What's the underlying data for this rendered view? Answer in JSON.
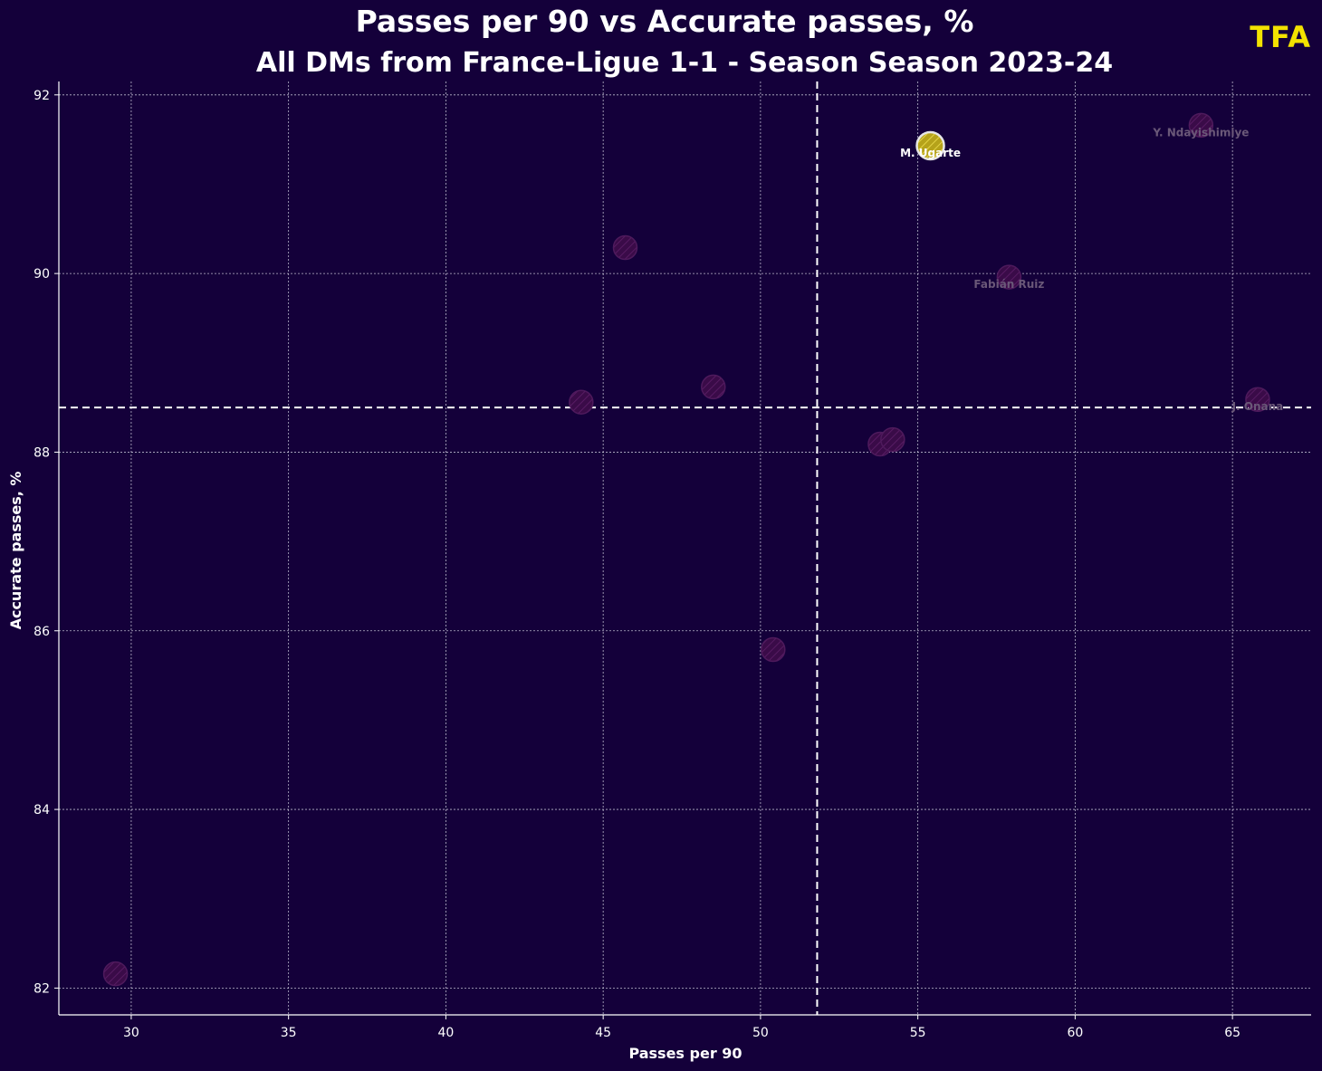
{
  "header": {
    "title": "Passes per 90 vs Accurate passes, %",
    "subtitle": "All DMs from France-Ligue 1-1 - Season Season 2023-24",
    "logo_text": "TFA"
  },
  "colors": {
    "background": "#14003a",
    "grid": "#d9d9e6",
    "highlight_fill": "#b5a21a",
    "highlight_stroke": "#e6e6e6",
    "point_fill": "#3a0b48",
    "point_stroke": "#4e1a5c",
    "faded_label": "#6a5878",
    "logo": "#f3e200"
  },
  "chart_data": {
    "type": "scatter",
    "title": "Passes per 90 vs Accurate passes, %",
    "subtitle": "All DMs from France-Ligue 1-1 - Season Season 2023-24",
    "xlabel": "Passes per 90",
    "ylabel": "Accurate passes, %",
    "xlim": [
      27.7,
      67.5
    ],
    "ylim": [
      81.7,
      92.15
    ],
    "xticks": [
      30,
      35,
      40,
      45,
      50,
      55,
      60,
      65
    ],
    "yticks": [
      82,
      84,
      86,
      88,
      90,
      92
    ],
    "grid": true,
    "reference_lines": {
      "x_mean": 51.8,
      "y_mean": 88.5
    },
    "points": [
      {
        "x": 55.4,
        "y": 91.43,
        "label": "M. Ugarte",
        "highlight": true
      },
      {
        "x": 64.0,
        "y": 91.66,
        "label": "Y. Ndayishimiye",
        "highlight": false
      },
      {
        "x": 57.9,
        "y": 89.96,
        "label": "Fabián Ruiz",
        "highlight": false
      },
      {
        "x": 65.8,
        "y": 88.59,
        "label": "J. Onana",
        "highlight": false
      },
      {
        "x": 45.7,
        "y": 90.29,
        "label": "",
        "highlight": false
      },
      {
        "x": 44.3,
        "y": 88.56,
        "label": "",
        "highlight": false
      },
      {
        "x": 48.5,
        "y": 88.73,
        "label": "",
        "highlight": false
      },
      {
        "x": 53.8,
        "y": 88.09,
        "label": "",
        "highlight": false
      },
      {
        "x": 54.2,
        "y": 88.14,
        "label": "",
        "highlight": false
      },
      {
        "x": 50.4,
        "y": 85.79,
        "label": "",
        "highlight": false
      },
      {
        "x": 29.5,
        "y": 82.16,
        "label": "",
        "highlight": false
      }
    ]
  }
}
